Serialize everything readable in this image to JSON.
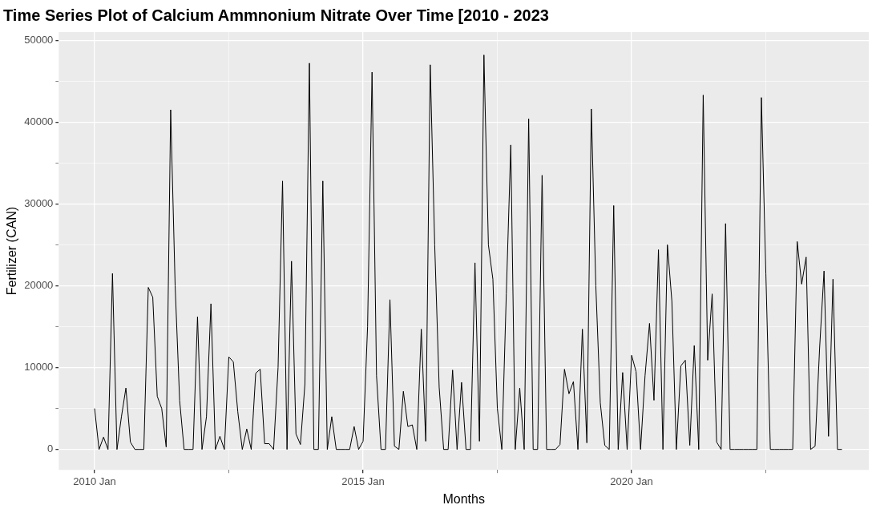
{
  "chart_data": {
    "type": "line",
    "title": "Time Series Plot of Calcium Ammnonium Nitrate Over Time [2010 - 2023",
    "xlabel": "Months",
    "ylabel": "Fertilizer (CAN)",
    "x": [
      "2010-01",
      "2010-02",
      "2010-03",
      "2010-04",
      "2010-05",
      "2010-06",
      "2010-07",
      "2010-08",
      "2010-09",
      "2010-10",
      "2010-11",
      "2010-12",
      "2011-01",
      "2011-02",
      "2011-03",
      "2011-04",
      "2011-05",
      "2011-06",
      "2011-07",
      "2011-08",
      "2011-09",
      "2011-10",
      "2011-11",
      "2011-12",
      "2012-01",
      "2012-02",
      "2012-03",
      "2012-04",
      "2012-05",
      "2012-06",
      "2012-07",
      "2012-08",
      "2012-09",
      "2012-10",
      "2012-11",
      "2012-12",
      "2013-01",
      "2013-02",
      "2013-03",
      "2013-04",
      "2013-05",
      "2013-06",
      "2013-07",
      "2013-08",
      "2013-09",
      "2013-10",
      "2013-11",
      "2013-12",
      "2014-01",
      "2014-02",
      "2014-03",
      "2014-04",
      "2014-05",
      "2014-06",
      "2014-07",
      "2014-08",
      "2014-09",
      "2014-10",
      "2014-11",
      "2014-12",
      "2015-01",
      "2015-02",
      "2015-03",
      "2015-04",
      "2015-05",
      "2015-06",
      "2015-07",
      "2015-08",
      "2015-09",
      "2015-10",
      "2015-11",
      "2015-12",
      "2016-01",
      "2016-02",
      "2016-03",
      "2016-04",
      "2016-05",
      "2016-06",
      "2016-07",
      "2016-08",
      "2016-09",
      "2016-10",
      "2016-11",
      "2016-12",
      "2017-01",
      "2017-02",
      "2017-03",
      "2017-04",
      "2017-05",
      "2017-06",
      "2017-07",
      "2017-08",
      "2017-09",
      "2017-10",
      "2017-11",
      "2017-12",
      "2018-01",
      "2018-02",
      "2018-03",
      "2018-04",
      "2018-05",
      "2018-06",
      "2018-07",
      "2018-08",
      "2018-09",
      "2018-10",
      "2018-11",
      "2018-12",
      "2019-01",
      "2019-02",
      "2019-03",
      "2019-04",
      "2019-05",
      "2019-06",
      "2019-07",
      "2019-08",
      "2019-09",
      "2019-10",
      "2019-11",
      "2019-12",
      "2020-01",
      "2020-02",
      "2020-03",
      "2020-04",
      "2020-05",
      "2020-06",
      "2020-07",
      "2020-08",
      "2020-09",
      "2020-10",
      "2020-11",
      "2020-12",
      "2021-01",
      "2021-02",
      "2021-03",
      "2021-04",
      "2021-05",
      "2021-06",
      "2021-07",
      "2021-08",
      "2021-09",
      "2021-10",
      "2021-11",
      "2021-12",
      "2022-01",
      "2022-02",
      "2022-03",
      "2022-04",
      "2022-05",
      "2022-06",
      "2022-07",
      "2022-08",
      "2022-09",
      "2022-10",
      "2022-11",
      "2022-12",
      "2023-01",
      "2023-02",
      "2023-03",
      "2023-04",
      "2023-05",
      "2023-06",
      "2023-07",
      "2023-08",
      "2023-09",
      "2023-10",
      "2023-11",
      "2023-12"
    ],
    "series": [
      {
        "color": "#000000",
        "values": [
          5000,
          0,
          1500,
          0,
          21500,
          0,
          4000,
          7500,
          900,
          0,
          0,
          0,
          19800,
          18600,
          6500,
          5000,
          300,
          41500,
          20000,
          6000,
          0,
          0,
          0,
          16200,
          0,
          4000,
          17800,
          0,
          1600,
          0,
          11300,
          10700,
          4600,
          0,
          2500,
          0,
          9300,
          9800,
          700,
          700,
          0,
          10000,
          32800,
          0,
          23000,
          1900,
          600,
          8000,
          47200,
          0,
          0,
          32800,
          0,
          4000,
          0,
          0,
          0,
          0,
          2800,
          0,
          1000,
          15000,
          46100,
          9000,
          0,
          0,
          18300,
          400,
          0,
          7100,
          2800,
          3000,
          0,
          14700,
          1000,
          47000,
          25000,
          7600,
          0,
          0,
          9700,
          0,
          8200,
          0,
          0,
          22800,
          1000,
          48200,
          25000,
          20800,
          5000,
          0,
          19000,
          37200,
          0,
          7500,
          0,
          40400,
          0,
          0,
          33500,
          0,
          0,
          0,
          600,
          9800,
          6800,
          8300,
          0,
          14700,
          800,
          41600,
          20000,
          5700,
          500,
          0,
          29800,
          0,
          9400,
          0,
          11500,
          9500,
          0,
          9000,
          15400,
          6000,
          24400,
          0,
          25000,
          18100,
          0,
          10200,
          10900,
          500,
          12700,
          0,
          43300,
          10900,
          19000,
          900,
          0,
          27600,
          0,
          0,
          0,
          0,
          0,
          0,
          0,
          43000,
          21500,
          0,
          0,
          0,
          0,
          0,
          0,
          25400,
          20200,
          23500,
          0,
          400,
          12300,
          21800,
          1600,
          20800,
          0,
          0
        ]
      }
    ],
    "xlim": [
      "2009-05",
      "2024-06"
    ],
    "xticks": [
      {
        "value": "2010-01",
        "label": "2010 Jan"
      },
      {
        "value": "2012-07",
        "label": null
      },
      {
        "value": "2015-01",
        "label": "2015 Jan"
      },
      {
        "value": "2017-07",
        "label": null
      },
      {
        "value": "2020-01",
        "label": "2020 Jan"
      },
      {
        "value": "2022-07",
        "label": null
      }
    ],
    "ylim": [
      -2500,
      51000
    ],
    "yticks": [
      0,
      {
        "value": 5000,
        "label": null
      },
      10000,
      {
        "value": 15000,
        "label": null
      },
      20000,
      {
        "value": 25000,
        "label": null
      },
      30000,
      {
        "value": 35000,
        "label": null
      },
      40000,
      {
        "value": 45000,
        "label": null
      },
      50000
    ],
    "grid": true,
    "legend": false,
    "marker": "none",
    "line_style": "solid"
  }
}
